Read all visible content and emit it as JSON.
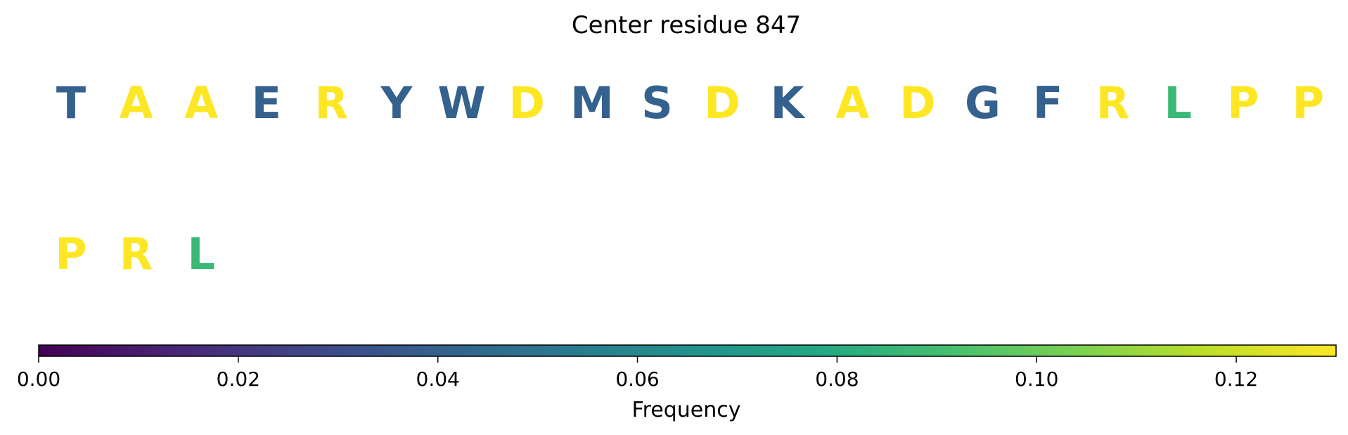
{
  "chart_data": {
    "type": "heatmap",
    "title": "Center residue 847",
    "residues": [
      {
        "letter": "T",
        "frequency": 0.04
      },
      {
        "letter": "A",
        "frequency": 0.13
      },
      {
        "letter": "A",
        "frequency": 0.13
      },
      {
        "letter": "E",
        "frequency": 0.04
      },
      {
        "letter": "R",
        "frequency": 0.13
      },
      {
        "letter": "Y",
        "frequency": 0.04
      },
      {
        "letter": "W",
        "frequency": 0.04
      },
      {
        "letter": "D",
        "frequency": 0.13
      },
      {
        "letter": "M",
        "frequency": 0.04
      },
      {
        "letter": "S",
        "frequency": 0.04
      },
      {
        "letter": "D",
        "frequency": 0.13
      },
      {
        "letter": "K",
        "frequency": 0.04
      },
      {
        "letter": "A",
        "frequency": 0.13
      },
      {
        "letter": "D",
        "frequency": 0.13
      },
      {
        "letter": "G",
        "frequency": 0.04
      },
      {
        "letter": "F",
        "frequency": 0.04
      },
      {
        "letter": "R",
        "frequency": 0.13
      },
      {
        "letter": "L",
        "frequency": 0.087
      },
      {
        "letter": "P",
        "frequency": 0.13
      },
      {
        "letter": "P",
        "frequency": 0.13
      },
      {
        "letter": "P",
        "frequency": 0.13
      },
      {
        "letter": "R",
        "frequency": 0.13
      },
      {
        "letter": "L",
        "frequency": 0.087
      }
    ],
    "colorbar": {
      "label": "Frequency",
      "colormap": "viridis",
      "range": [
        0,
        0.13
      ],
      "ticks": [
        0,
        0.02,
        0.04,
        0.06,
        0.08,
        0.1,
        0.12
      ],
      "tick_labels": [
        "0.00",
        "0.02",
        "0.04",
        "0.06",
        "0.08",
        "0.10",
        "0.12"
      ]
    }
  }
}
